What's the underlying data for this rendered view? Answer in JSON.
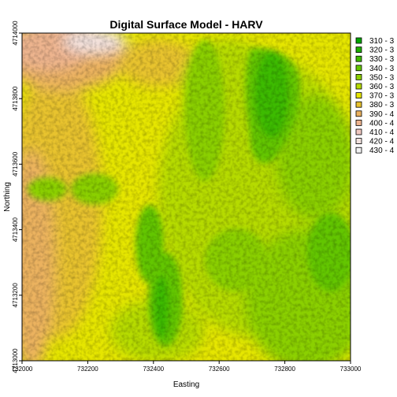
{
  "chart_data": {
    "type": "heatmap",
    "title": "Digital Surface Model - HARV",
    "xlabel": "Easting",
    "ylabel": "Northing",
    "xlim": [
      732000,
      733000
    ],
    "ylim": [
      4713000,
      4714000
    ],
    "x_ticks": [
      "732000",
      "732200",
      "732400",
      "732600",
      "732800",
      "733000"
    ],
    "y_ticks": [
      "4713000",
      "4713200",
      "4713400",
      "4713600",
      "4713800",
      "4714000"
    ],
    "legend": {
      "position": "right",
      "entries": [
        {
          "label": "310 - 3",
          "color": "#00A600"
        },
        {
          "label": "320 - 3",
          "color": "#1EB000"
        },
        {
          "label": "330 - 3",
          "color": "#3EBB00"
        },
        {
          "label": "340 - 3",
          "color": "#63C600"
        },
        {
          "label": "350 - 3",
          "color": "#8BD000"
        },
        {
          "label": "360 - 3",
          "color": "#B6DB00"
        },
        {
          "label": "370 - 3",
          "color": "#E6E600"
        },
        {
          "label": "380 - 3",
          "color": "#E8C32E"
        },
        {
          "label": "390 - 4",
          "color": "#EBB25E"
        },
        {
          "label": "400 - 4",
          "color": "#EDB48E"
        },
        {
          "label": "410 - 4",
          "color": "#F0C9C0"
        },
        {
          "label": "420 - 4",
          "color": "#F2E2DE"
        },
        {
          "label": "430 - 4",
          "color": "#F2F2F2"
        }
      ]
    }
  }
}
